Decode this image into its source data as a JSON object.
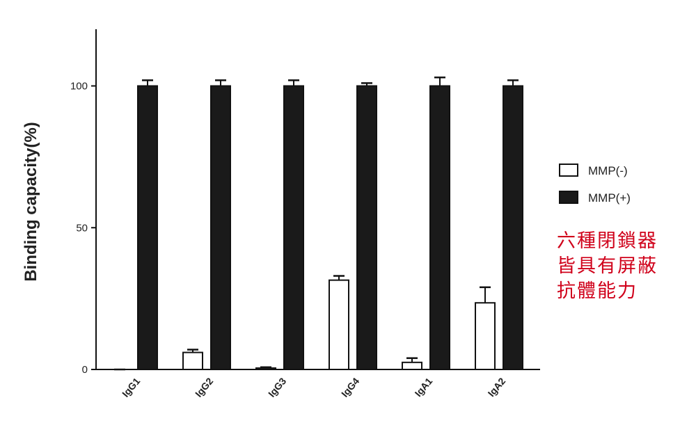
{
  "chart_data": {
    "type": "bar",
    "ylabel": "Binding capacity(%)",
    "categories": [
      "IgG1",
      "IgG2",
      "IgG3",
      "IgG4",
      "IgA1",
      "IgA2"
    ],
    "series": [
      {
        "name": "MMP(-)",
        "color": "#ffffff",
        "values": [
          0,
          6,
          0.5,
          31.5,
          2.5,
          23.5
        ],
        "errors": [
          0,
          1,
          0.3,
          1.5,
          1.5,
          5.5
        ]
      },
      {
        "name": "MMP(+)",
        "color": "#1a1a1a",
        "values": [
          100,
          100,
          100,
          100,
          100,
          100
        ],
        "errors": [
          2,
          2,
          2,
          1,
          3,
          2
        ]
      }
    ],
    "ylim": [
      0,
      120
    ],
    "yticks": [
      0,
      50,
      100
    ],
    "annotation": [
      "六種閉鎖器",
      "皆具有屏蔽",
      "抗體能力"
    ]
  }
}
